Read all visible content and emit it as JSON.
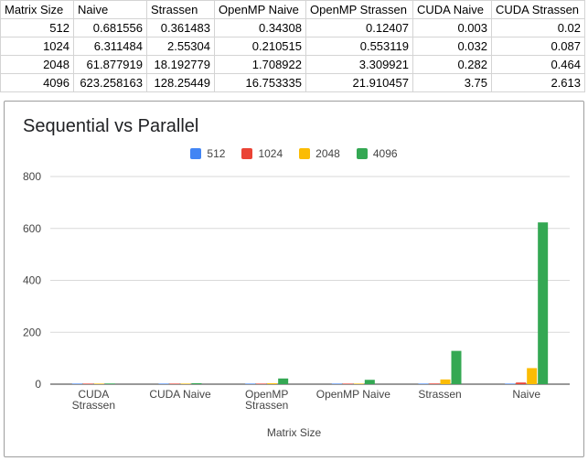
{
  "sheet": {
    "columns": [
      "Matrix Size",
      "Naive",
      "Strassen",
      "OpenMP Naive",
      "OpenMP Strassen",
      "CUDA Naive",
      "CUDA Strassen"
    ],
    "rows": [
      [
        "512",
        "0.681556",
        "0.361483",
        "0.34308",
        "0.12407",
        "0.003",
        "0.02"
      ],
      [
        "1024",
        "6.311484",
        "2.55304",
        "0.210515",
        "0.553119",
        "0.032",
        "0.087"
      ],
      [
        "2048",
        "61.877919",
        "18.192779",
        "1.708922",
        "3.309921",
        "0.282",
        "0.464"
      ],
      [
        "4096",
        "623.258163",
        "128.25449",
        "16.753335",
        "21.910457",
        "3.75",
        "2.613"
      ]
    ]
  },
  "chart_data": {
    "type": "bar",
    "title": "Sequential vs Parallel",
    "xlabel": "Matrix Size",
    "ylabel": "",
    "ylim": [
      0,
      800
    ],
    "yticks": [
      0,
      200,
      400,
      600,
      800
    ],
    "legend_position": "top",
    "categories": [
      "CUDA Strassen",
      "CUDA Naive",
      "OpenMP Strassen",
      "OpenMP Naive",
      "Strassen",
      "Naive"
    ],
    "category_labels": [
      [
        "CUDA",
        "Strassen"
      ],
      [
        "CUDA Naive"
      ],
      [
        "OpenMP",
        "Strassen"
      ],
      [
        "OpenMP Naive"
      ],
      [
        "Strassen"
      ],
      [
        "Naive"
      ]
    ],
    "series": [
      {
        "name": "512",
        "color": "#4285f4",
        "values": [
          0.02,
          0.003,
          0.12407,
          0.34308,
          0.361483,
          0.681556
        ]
      },
      {
        "name": "1024",
        "color": "#ea4335",
        "values": [
          0.087,
          0.032,
          0.553119,
          0.210515,
          2.55304,
          6.311484
        ]
      },
      {
        "name": "2048",
        "color": "#fbbc04",
        "values": [
          0.464,
          0.282,
          3.309921,
          1.708922,
          18.192779,
          61.877919
        ]
      },
      {
        "name": "4096",
        "color": "#34a853",
        "values": [
          2.613,
          3.75,
          21.910457,
          16.753335,
          128.25449,
          623.258163
        ]
      }
    ]
  }
}
